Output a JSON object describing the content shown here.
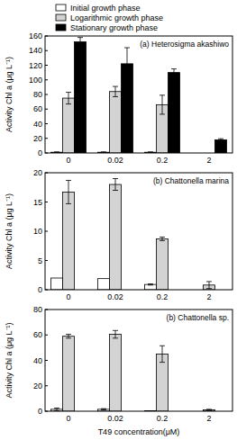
{
  "chart_data": [
    {
      "type": "bar",
      "title": "(a) Heterosigma akashiwo",
      "categories": [
        "0",
        "0.02",
        "0.2",
        "2"
      ],
      "series": [
        {
          "name": "Initial growth phase",
          "color": "#ffffff",
          "values": [
            1,
            1,
            1,
            0
          ],
          "errors": [
            0.5,
            0.5,
            0.5,
            0
          ]
        },
        {
          "name": "Logarithmic growth phase",
          "color": "#d3d3d3",
          "values": [
            75,
            84,
            66,
            0
          ],
          "errors": [
            8,
            7,
            13,
            0
          ]
        },
        {
          "name": "Stationary growth phase",
          "color": "#000000",
          "values": [
            152,
            122,
            110,
            18
          ],
          "errors": [
            6,
            22,
            5,
            1.5
          ]
        }
      ],
      "ylabel": "Activity Chl a (μg L⁻¹)",
      "ylim": [
        0,
        160
      ],
      "yticks": [
        0,
        20,
        40,
        60,
        80,
        100,
        120,
        140,
        160
      ],
      "legend": "top-left"
    },
    {
      "type": "bar",
      "title": "(b) Chattonella marina",
      "categories": [
        "0",
        "0.02",
        "0.2",
        "2"
      ],
      "series": [
        {
          "color": "#ffffff",
          "values": [
            2,
            1.9,
            0.9,
            0
          ],
          "errors": [
            0,
            0,
            0.1,
            0
          ]
        },
        {
          "color": "#d3d3d3",
          "values": [
            16.7,
            18,
            8.7,
            0.8
          ],
          "errors": [
            2,
            1,
            0.3,
            0.6
          ]
        }
      ],
      "ylabel": "Activity Chl a (μg L⁻¹)",
      "ylim": [
        0,
        20
      ],
      "yticks": [
        0,
        5,
        10,
        15,
        20
      ]
    },
    {
      "type": "bar",
      "title": "(b) Chattonella sp.",
      "categories": [
        "0",
        "0.02",
        "0.2",
        "2"
      ],
      "series": [
        {
          "color": "#ffffff",
          "values": [
            1.5,
            1.5,
            0.3,
            0
          ],
          "errors": [
            1,
            0.5,
            0,
            0
          ]
        },
        {
          "color": "#d3d3d3",
          "values": [
            59,
            60.5,
            45,
            1
          ],
          "errors": [
            1.5,
            3,
            6.5,
            0.5
          ]
        }
      ],
      "ylabel": "Activity Chl a (μg L⁻¹)",
      "xlabel": "T49 concentration(μM)",
      "ylim": [
        0,
        80
      ],
      "yticks": [
        0,
        20,
        40,
        60,
        80
      ]
    }
  ]
}
